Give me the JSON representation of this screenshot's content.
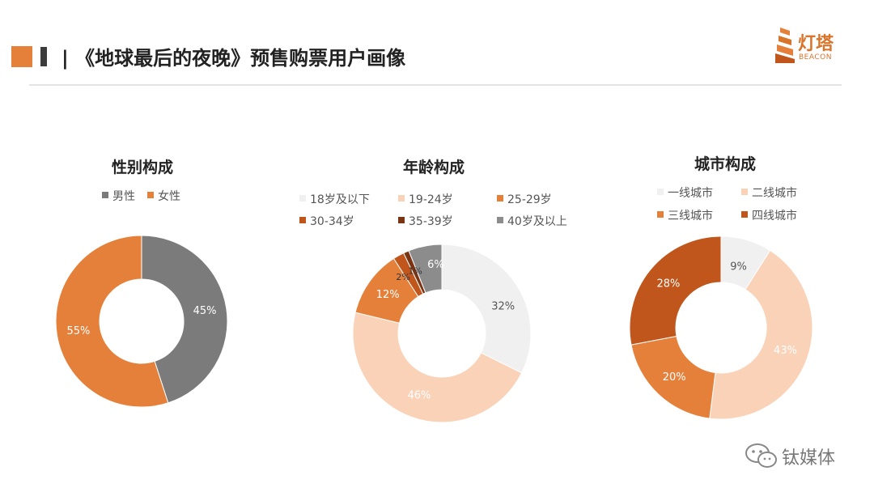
{
  "header": {
    "title": "| 《地球最后的夜晚》预售购票用户画像",
    "accent_color": "#e5803b",
    "logo": {
      "text_cn": "灯塔",
      "text_en": "BEACON",
      "color": "#d9742b"
    }
  },
  "watermark": {
    "text": "钛媒体",
    "icon": "wechat-icon"
  },
  "chart_data": [
    {
      "type": "pie",
      "title": "性别构成",
      "legend_position": "top",
      "categories": [
        "男性",
        "女性"
      ],
      "values": [
        45,
        55
      ],
      "labels": [
        "45%",
        "55%"
      ],
      "colors": [
        "#7b7b7b",
        "#e5803b"
      ],
      "label_colors": [
        "#ffffff",
        "#ffffff"
      ]
    },
    {
      "type": "pie",
      "title": "年龄构成",
      "legend_position": "top",
      "categories": [
        "18岁及以下",
        "19-24岁",
        "25-29岁",
        "30-34岁",
        "35-39岁",
        "40岁及以上"
      ],
      "values": [
        32,
        46,
        12,
        2,
        1,
        6
      ],
      "labels": [
        "32%",
        "46%",
        "12%",
        "2%",
        "1%",
        "6%"
      ],
      "colors": [
        "#f0f0f0",
        "#f9d2b8",
        "#e5803b",
        "#c0561b",
        "#7a3515",
        "#8c8c8c"
      ],
      "label_colors": [
        "#555555",
        "#ffffff",
        "#ffffff",
        "#333333",
        "#333333",
        "#ffffff"
      ]
    },
    {
      "type": "pie",
      "title": "城市构成",
      "legend_position": "top",
      "categories": [
        "一线城市",
        "二线城市",
        "三线城市",
        "四线城市"
      ],
      "values": [
        9,
        43,
        20,
        28
      ],
      "labels": [
        "9%",
        "43%",
        "20%",
        "28%"
      ],
      "colors": [
        "#f0f0f0",
        "#f9d2b8",
        "#e5803b",
        "#c0561b"
      ],
      "label_colors": [
        "#555555",
        "#ffffff",
        "#ffffff",
        "#ffffff"
      ]
    }
  ]
}
